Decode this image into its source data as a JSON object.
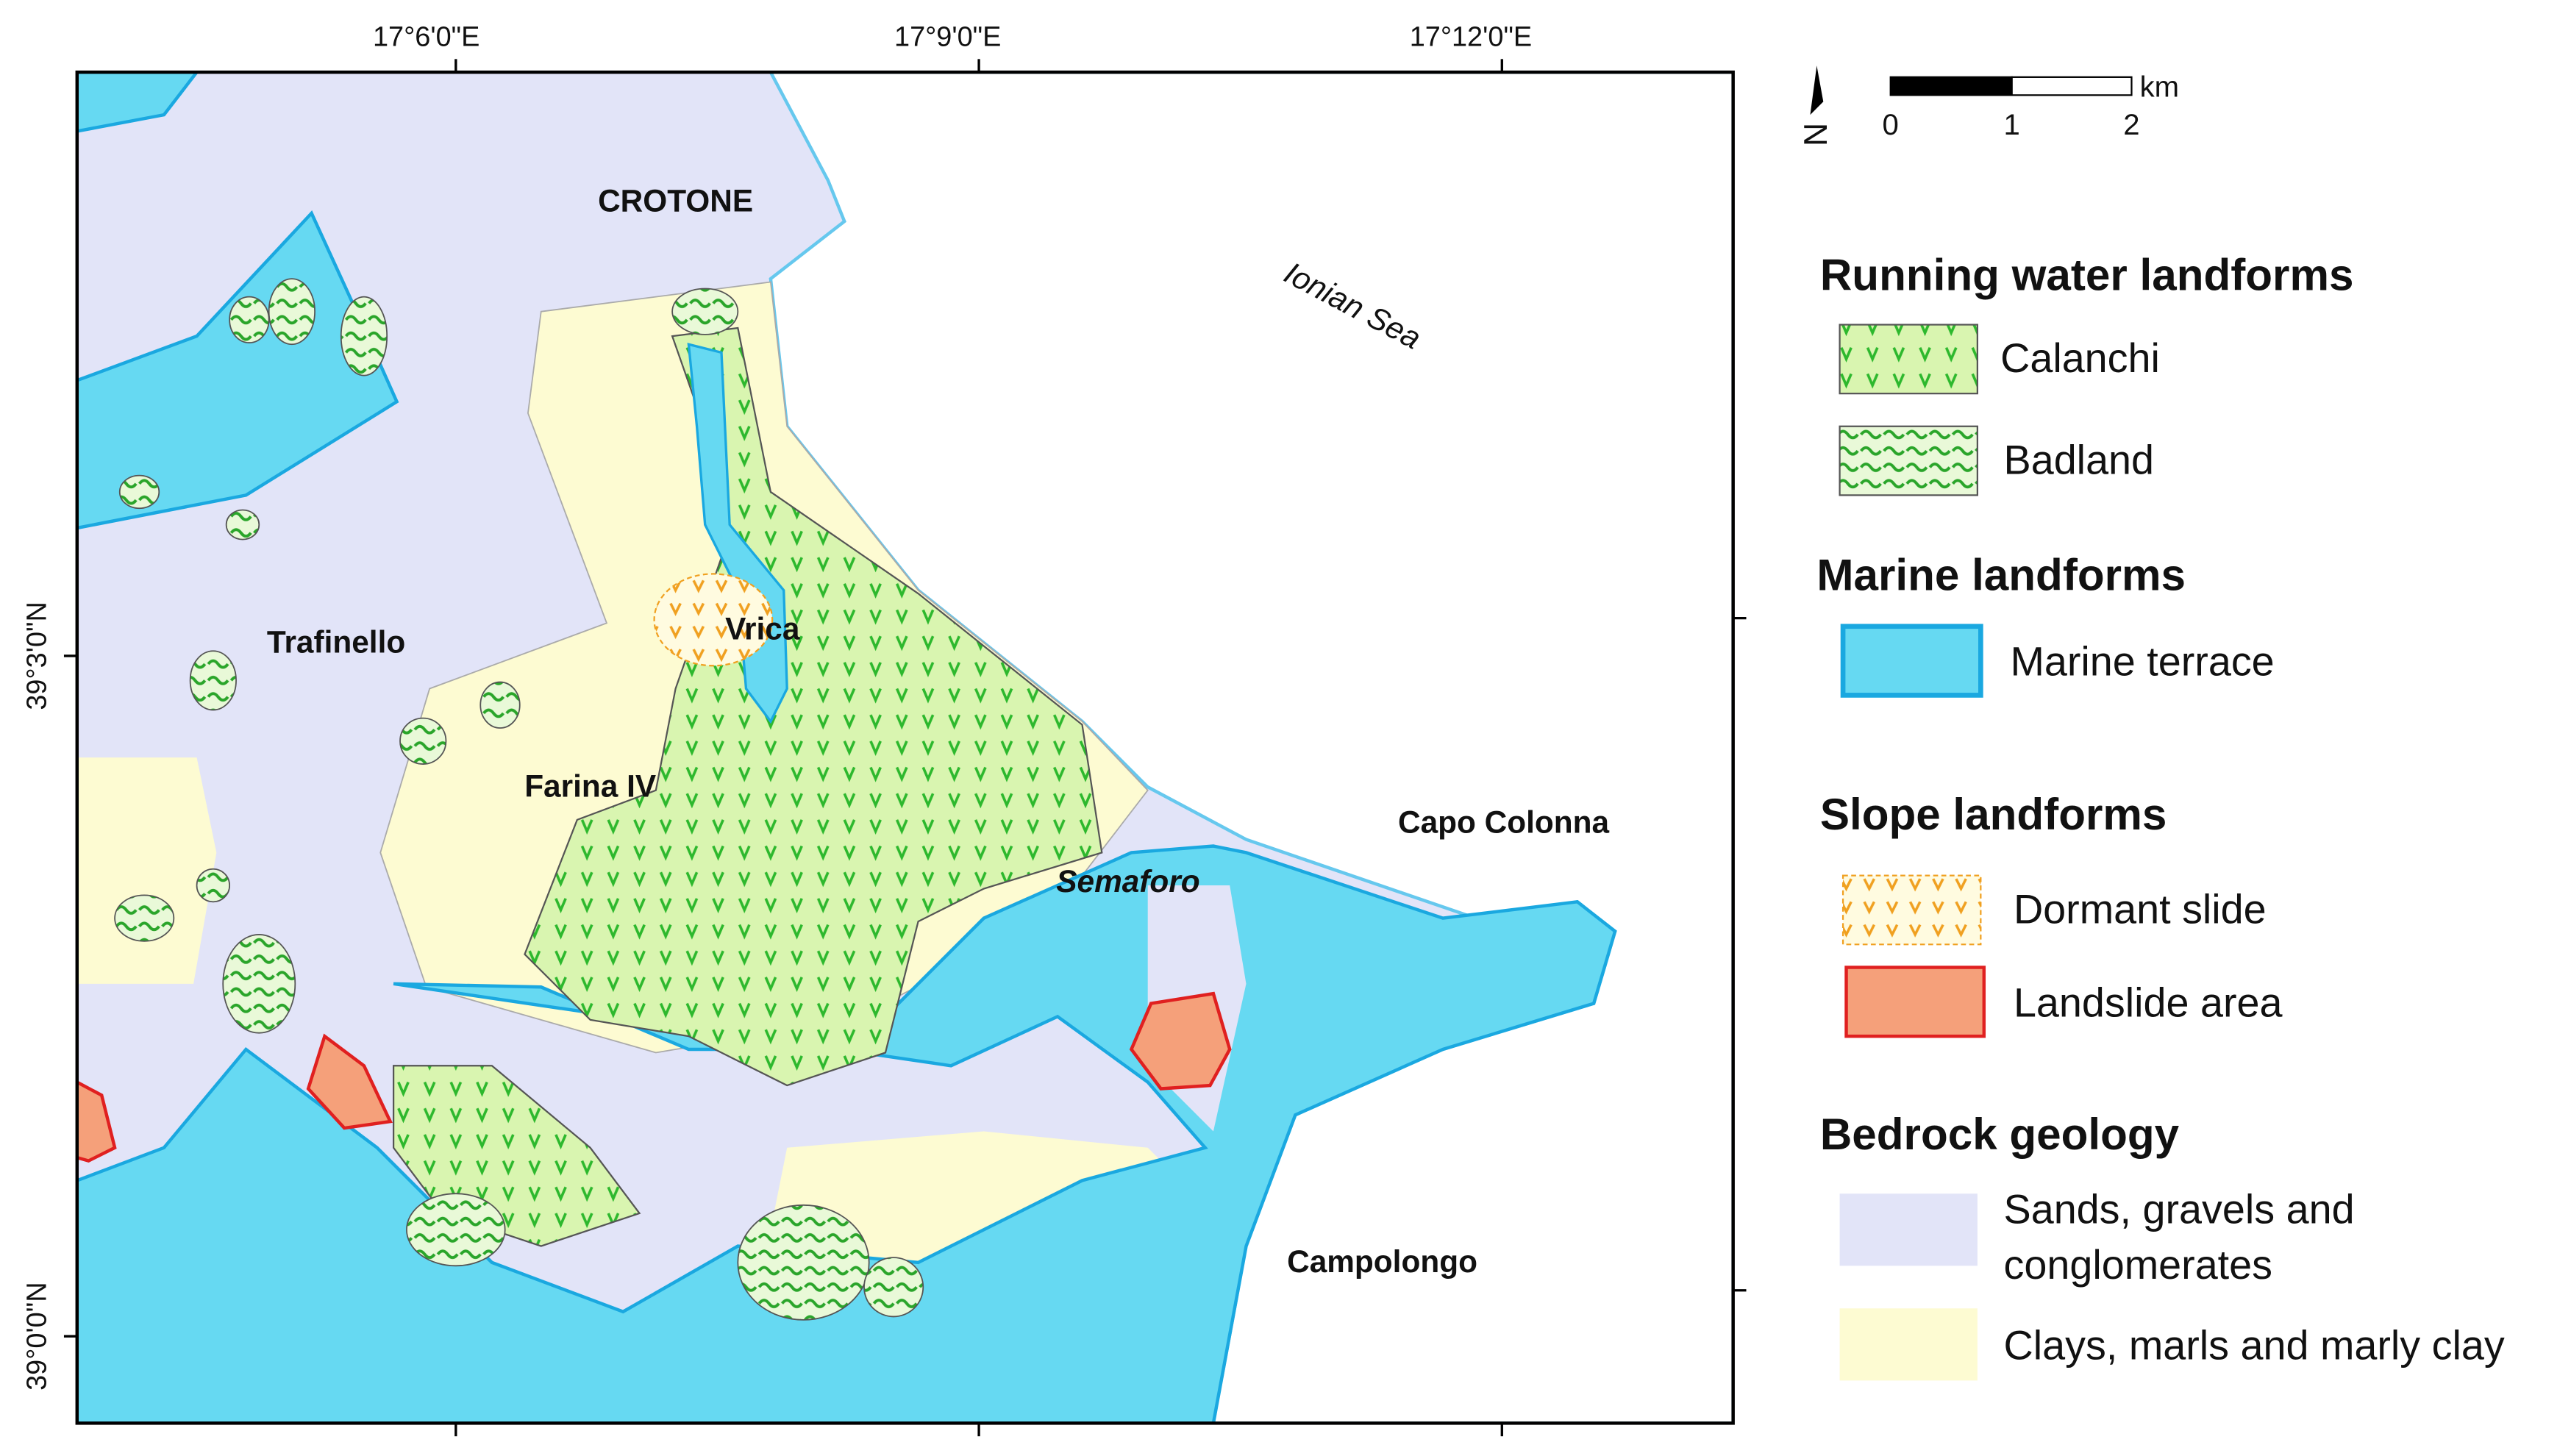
{
  "map": {
    "lon_labels": [
      "17°6'0\"E",
      "17°9'0\"E",
      "17°12'0\"E"
    ],
    "lat_labels": [
      "39°3'0\"N",
      "39°0'0\"N"
    ],
    "places": [
      "CROTONE",
      "Ionian Sea",
      "Trafinello",
      "Vrica",
      "Farina IV",
      "Capo Colonna",
      "Semaforo",
      "Campolongo"
    ],
    "north": "N",
    "scale": {
      "ticks": [
        0,
        1,
        2
      ],
      "unit": "km"
    }
  },
  "legend": {
    "groups": [
      {
        "title": "Running water landforms",
        "items": [
          "Calanchi",
          "Badland"
        ]
      },
      {
        "title": "Marine landforms",
        "items": [
          "Marine terrace"
        ]
      },
      {
        "title": "Slope landforms",
        "items": [
          "Dormant slide",
          "Landslide area"
        ]
      },
      {
        "title": "Bedrock geology",
        "items": [
          "Sands, gravels and",
          "conglomerates",
          "Clays, marls and marly clay"
        ]
      }
    ]
  }
}
